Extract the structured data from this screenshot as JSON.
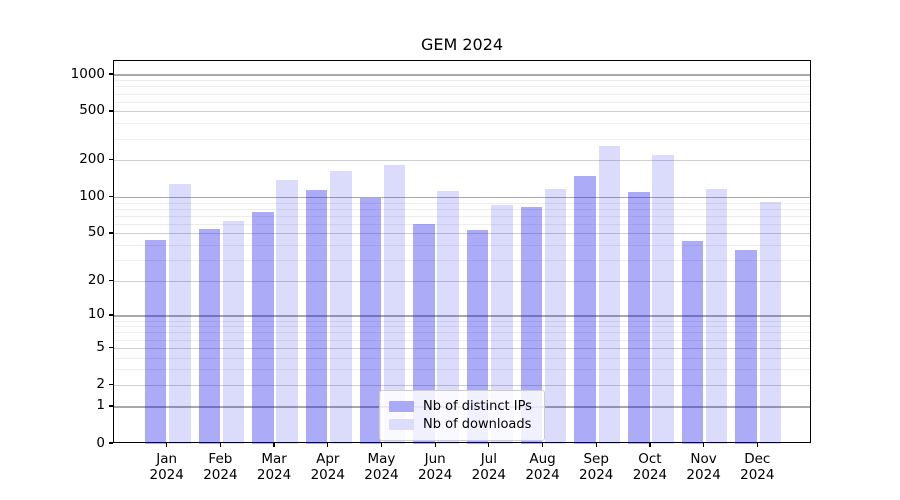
{
  "figure": {
    "title": "GEM 2024"
  },
  "chart_data": {
    "type": "bar",
    "title": "GEM 2024",
    "categories": [
      "Jan",
      "Feb",
      "Mar",
      "Apr",
      "May",
      "Jun",
      "Jul",
      "Aug",
      "Sep",
      "Oct",
      "Nov",
      "Dec"
    ],
    "x_tick_year_line": "2024",
    "series": [
      {
        "name": "Nb of distinct IPs",
        "color_solid": "#a9a9f8",
        "color_fill": "rgba(15,15,235,0.35)",
        "values": [
          45,
          55,
          76,
          115,
          100,
          61,
          54,
          83,
          150,
          110,
          44,
          37
        ]
      },
      {
        "name": "Nb of downloads",
        "color_solid": "#dcdcfc",
        "color_fill": "rgba(15,15,235,0.15)",
        "values": [
          130,
          64,
          138,
          165,
          185,
          113,
          87,
          118,
          265,
          224,
          118,
          92
        ]
      }
    ],
    "y_scale": "log1p",
    "y_axis_max": 1300,
    "y_ticks_labeled": [
      0,
      1,
      2,
      5,
      10,
      20,
      50,
      100,
      200,
      500,
      1000
    ],
    "y_gridlines_power10": [
      1,
      10,
      100,
      1000
    ],
    "y_gridlines_sub_labeled": [
      2,
      5,
      20,
      50,
      200,
      500
    ],
    "y_gridlines_minor": [
      3,
      4,
      6,
      7,
      8,
      9,
      30,
      40,
      60,
      70,
      80,
      90,
      300,
      400,
      600,
      700,
      800,
      900
    ],
    "grid": "major+minor",
    "legend_position": "lower center"
  },
  "colors": {
    "grid_power10": "#a8a8a8",
    "grid_sub": "#cfcfcf",
    "grid_minor": "#ededed",
    "spine": "#000000",
    "background": "#ffffff"
  }
}
